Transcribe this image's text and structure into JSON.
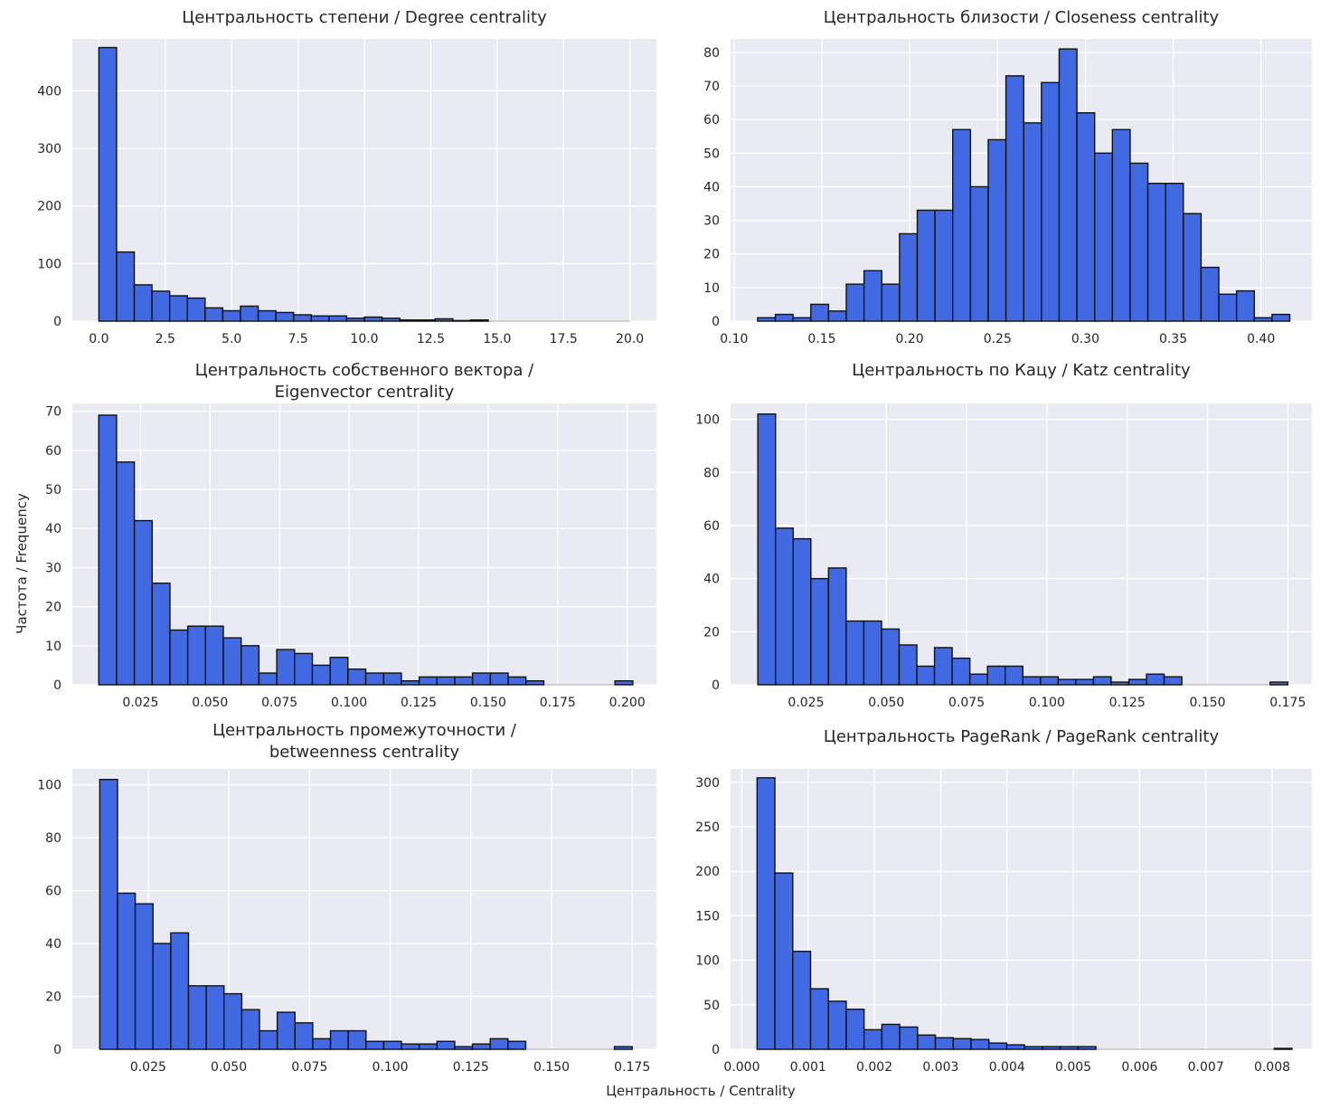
{
  "figure": {
    "xlabel": "Центральность / Centrality",
    "ylabel": "Частота / Frequency",
    "colors": {
      "bar": "#4169e1",
      "edge": "#111111",
      "panel_bg": "#eaeaf2",
      "grid": "#ffffff",
      "axis_line": "#bbbbbb"
    }
  },
  "chart_data": [
    {
      "type": "bar",
      "title": [
        "Центральность степени / Degree centrality"
      ],
      "xlabel": "",
      "ylabel": "",
      "xlim": [
        -1.0,
        21.0
      ],
      "ylim": [
        0,
        490
      ],
      "xticks": [
        0,
        2.5,
        5,
        7.5,
        10,
        12.5,
        15,
        17.5,
        20
      ],
      "xtick_labels": [
        "0.0",
        "2.5",
        "5.0",
        "7.5",
        "10.0",
        "12.5",
        "15.0",
        "17.5",
        "20.0"
      ],
      "yticks": [
        0,
        100,
        200,
        300,
        400
      ],
      "ytick_labels": [
        "0",
        "100",
        "200",
        "300",
        "400"
      ],
      "bin_start": 0.0,
      "bin_width": 0.6667,
      "values": [
        475,
        120,
        63,
        52,
        44,
        40,
        23,
        18,
        26,
        18,
        15,
        11,
        9,
        9,
        5,
        7,
        5,
        2,
        2,
        4,
        1,
        2,
        0,
        0,
        0,
        0,
        0,
        0,
        0,
        0
      ]
    },
    {
      "type": "bar",
      "title": [
        "Центральность близости / Closeness centrality"
      ],
      "xlabel": "",
      "ylabel": "",
      "xlim": [
        0.098,
        0.429
      ],
      "ylim": [
        0,
        84
      ],
      "xticks": [
        0.1,
        0.15,
        0.2,
        0.25,
        0.3,
        0.35,
        0.4
      ],
      "xtick_labels": [
        "0.10",
        "0.15",
        "0.20",
        "0.25",
        "0.30",
        "0.35",
        "0.40"
      ],
      "yticks": [
        0,
        10,
        20,
        30,
        40,
        50,
        60,
        70,
        80
      ],
      "ytick_labels": [
        "0",
        "10",
        "20",
        "30",
        "40",
        "50",
        "60",
        "70",
        "80"
      ],
      "bin_start": 0.1134,
      "bin_width": 0.0101,
      "values": [
        1,
        2,
        1,
        5,
        3,
        11,
        15,
        11,
        26,
        33,
        33,
        57,
        40,
        54,
        73,
        59,
        71,
        81,
        62,
        50,
        57,
        47,
        41,
        41,
        32,
        16,
        8,
        9,
        1,
        2
      ]
    },
    {
      "type": "bar",
      "title": [
        "Центральность собственного вектора /",
        "Eigenvector centrality"
      ],
      "xlabel": "",
      "ylabel": "",
      "xlim": [
        0.0005,
        0.2105
      ],
      "ylim": [
        0,
        72
      ],
      "xticks": [
        0.025,
        0.05,
        0.075,
        0.1,
        0.125,
        0.15,
        0.175,
        0.2
      ],
      "xtick_labels": [
        "0.025",
        "0.050",
        "0.075",
        "0.100",
        "0.125",
        "0.150",
        "0.175",
        "0.200"
      ],
      "yticks": [
        0,
        10,
        20,
        30,
        40,
        50,
        60,
        70
      ],
      "ytick_labels": [
        "0",
        "10",
        "20",
        "30",
        "40",
        "50",
        "60",
        "70"
      ],
      "bin_start": 0.01,
      "bin_width": 0.0064,
      "values": [
        69,
        57,
        42,
        26,
        14,
        15,
        15,
        12,
        10,
        3,
        9,
        8,
        5,
        7,
        4,
        3,
        3,
        1,
        2,
        2,
        2,
        3,
        3,
        2,
        1,
        0,
        0,
        0,
        0,
        1
      ]
    },
    {
      "type": "bar",
      "title": [
        "Центральность по Кацу / Katz centrality"
      ],
      "xlabel": "",
      "ylabel": "",
      "xlim": [
        0.0015,
        0.1825
      ],
      "ylim": [
        0,
        106
      ],
      "xticks": [
        0.025,
        0.05,
        0.075,
        0.1,
        0.125,
        0.15,
        0.175
      ],
      "xtick_labels": [
        "0.025",
        "0.050",
        "0.075",
        "0.100",
        "0.125",
        "0.150",
        "0.175"
      ],
      "yticks": [
        0,
        20,
        40,
        60,
        80,
        100
      ],
      "ytick_labels": [
        "0",
        "20",
        "40",
        "60",
        "80",
        "100"
      ],
      "bin_start": 0.01,
      "bin_width": 0.0055,
      "values": [
        102,
        59,
        55,
        40,
        44,
        24,
        24,
        21,
        15,
        7,
        14,
        10,
        4,
        7,
        7,
        3,
        3,
        2,
        2,
        3,
        1,
        2,
        4,
        3,
        0,
        0,
        0,
        0,
        0,
        1
      ]
    },
    {
      "type": "bar",
      "title": [
        "Центральность промежуточности /",
        "betweenness centrality"
      ],
      "xlabel": "",
      "ylabel": "",
      "xlim": [
        0.0015,
        0.1825
      ],
      "ylim": [
        0,
        106
      ],
      "xticks": [
        0.025,
        0.05,
        0.075,
        0.1,
        0.125,
        0.15,
        0.175
      ],
      "xtick_labels": [
        "0.025",
        "0.050",
        "0.075",
        "0.100",
        "0.125",
        "0.150",
        "0.175"
      ],
      "yticks": [
        0,
        20,
        40,
        60,
        80,
        100
      ],
      "ytick_labels": [
        "0",
        "20",
        "40",
        "60",
        "80",
        "100"
      ],
      "bin_start": 0.01,
      "bin_width": 0.0055,
      "values": [
        102,
        59,
        55,
        40,
        44,
        24,
        24,
        21,
        15,
        7,
        14,
        10,
        4,
        7,
        7,
        3,
        3,
        2,
        2,
        3,
        1,
        2,
        4,
        3,
        0,
        0,
        0,
        0,
        0,
        1
      ]
    },
    {
      "type": "bar",
      "title": [
        "Центральность PageRank / PageRank centrality"
      ],
      "xlabel": "",
      "ylabel": "",
      "xlim": [
        -0.00017,
        0.0086
      ],
      "ylim": [
        0,
        315
      ],
      "xticks": [
        0,
        0.001,
        0.002,
        0.003,
        0.004,
        0.005,
        0.006,
        0.007,
        0.008
      ],
      "xtick_labels": [
        "0.000",
        "0.001",
        "0.002",
        "0.003",
        "0.004",
        "0.005",
        "0.006",
        "0.007",
        "0.008"
      ],
      "yticks": [
        0,
        50,
        100,
        150,
        200,
        250,
        300
      ],
      "ytick_labels": [
        "0",
        "50",
        "100",
        "150",
        "200",
        "250",
        "300"
      ],
      "bin_start": 0.00023,
      "bin_width": 0.000269,
      "values": [
        305,
        198,
        110,
        68,
        54,
        45,
        22,
        28,
        25,
        16,
        13,
        12,
        11,
        7,
        5,
        3,
        3,
        3,
        3,
        0,
        0,
        0,
        0,
        0,
        0,
        0,
        0,
        0,
        0,
        1
      ]
    }
  ]
}
